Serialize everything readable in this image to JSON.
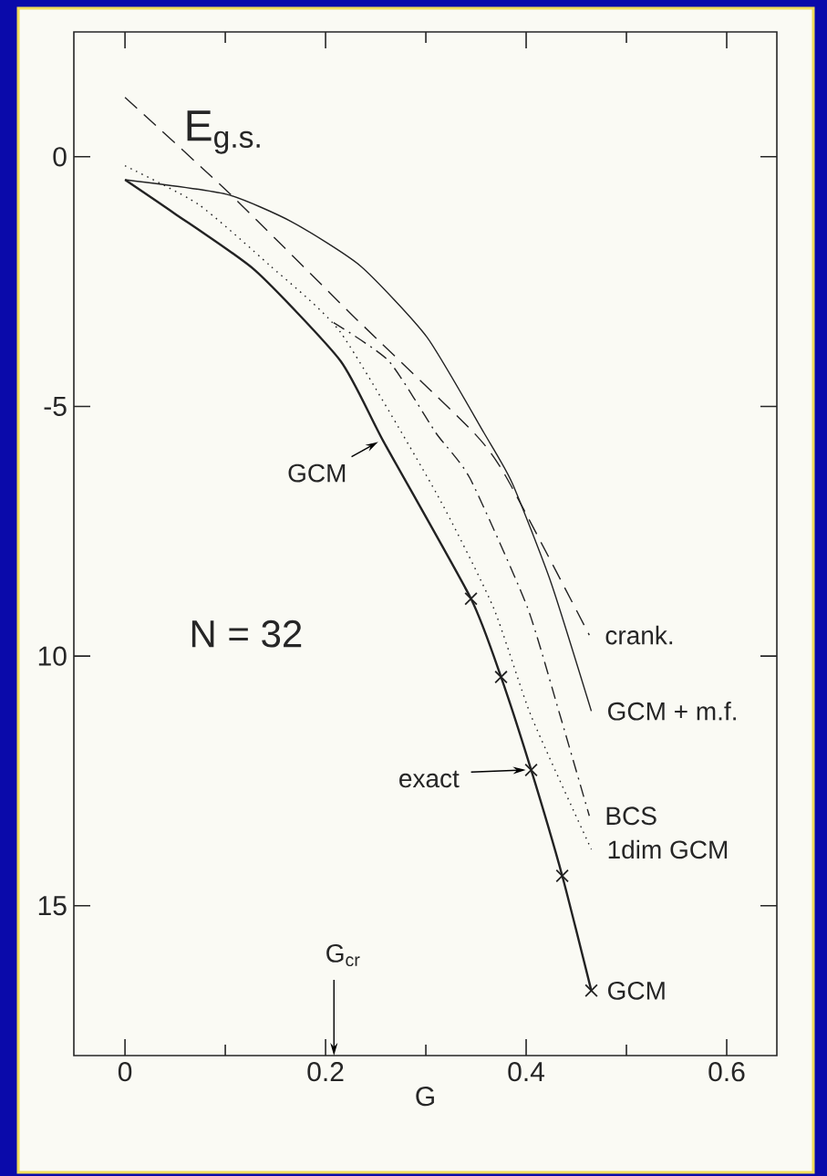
{
  "chart_data": {
    "type": "line",
    "ylabel": "E$_{g.s.}$",
    "xlabel": "G",
    "xlim": [
      -0.051,
      0.65
    ],
    "ylim": [
      -18,
      2.5
    ],
    "xticks": [
      0,
      0.2,
      0.4,
      0.6
    ],
    "yticks": [
      0,
      -5,
      {
        "value": -10,
        "label": "10"
      },
      {
        "value": -15,
        "label": "15"
      }
    ],
    "annotations": [
      "N = 32",
      {
        "text": "GCM",
        "x": 0.258,
        "y": -5.71
      },
      {
        "text": "exact",
        "x": 0.405,
        "y": -12.28
      },
      "G$_{cr}$"
    ],
    "series": [
      {
        "name": "crank.",
        "color": "#222222",
        "line_style": "dashed",
        "x": [
          0,
          0.105,
          0.225,
          0.348,
          0.382,
          0.463
        ],
        "values": [
          1.19,
          -0.75,
          -3.14,
          -5.53,
          -6.48,
          -9.58
        ]
      },
      {
        "name": "GCM + m.f.",
        "color": "#222222",
        "line_style": "solid",
        "x": [
          0,
          0.101,
          0.167,
          0.235,
          0.301,
          0.358,
          0.386,
          0.425,
          0.465
        ],
        "values": [
          -0.46,
          -0.75,
          -1.31,
          -2.19,
          -3.61,
          -5.53,
          -6.53,
          -8.54,
          -11.1
        ]
      },
      {
        "name": "BCS",
        "color": "#222222",
        "line_style": "dashdot",
        "x": [
          0.208,
          0.263,
          0.31,
          0.344,
          0.401,
          0.434,
          0.463
        ],
        "values": [
          -3.32,
          -4.09,
          -5.53,
          -6.44,
          -9.01,
          -11.2,
          -13.2
        ]
      },
      {
        "name": "1dim GCM",
        "color": "#222222",
        "line_style": "dotted",
        "x": [
          0,
          0.073,
          0.144,
          0.215,
          0.31,
          0.367,
          0.405,
          0.465
        ],
        "values": [
          -0.18,
          -0.95,
          -2.17,
          -3.52,
          -6.72,
          -9.01,
          -11.2,
          -13.87
        ]
      },
      {
        "name": "GCM",
        "color": "#222222",
        "line_style": "solid",
        "x": [
          0,
          0.049,
          0.13,
          0.215,
          0.258,
          0.345,
          0.375,
          0.405,
          0.436,
          0.465
        ],
        "values": [
          -0.46,
          -1.13,
          -2.28,
          -4.09,
          -5.71,
          -8.85,
          -10.42,
          -12.28,
          -14.4,
          -16.7
        ]
      },
      {
        "type": "scatter",
        "marker": "cross",
        "color": "#222222",
        "x": [
          0.345,
          0.375,
          0.405,
          0.436,
          0.465
        ],
        "values": [
          -8.85,
          -10.42,
          -12.28,
          -14.4,
          -16.7
        ]
      }
    ]
  }
}
